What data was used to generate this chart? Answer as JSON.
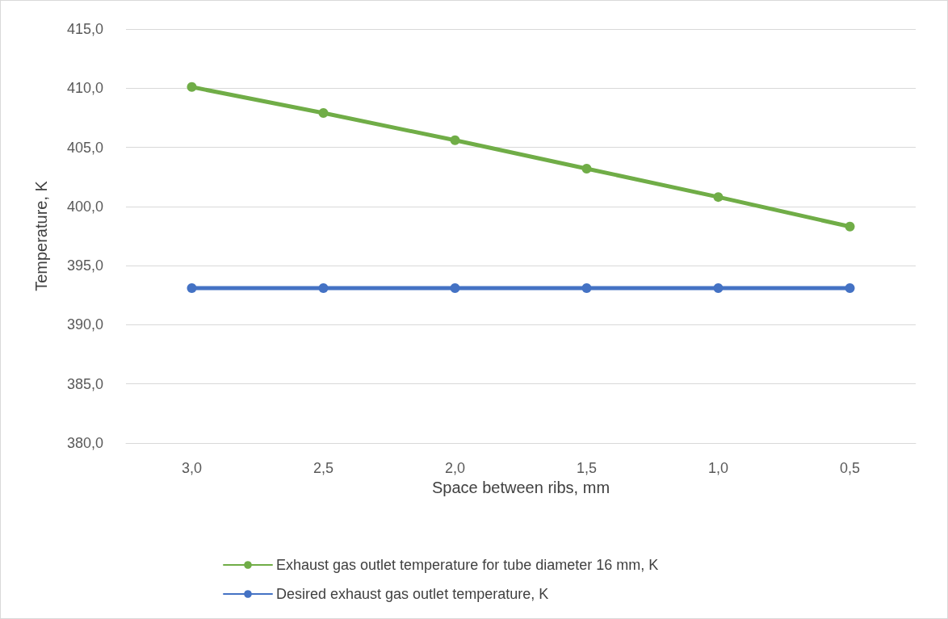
{
  "chart_data": {
    "type": "line",
    "xlabel": "Space between ribs, mm",
    "ylabel": "Temperature, K",
    "categories": [
      "3,0",
      "2,5",
      "2,0",
      "1,5",
      "1,0",
      "0,5"
    ],
    "series": [
      {
        "name": "Exhaust gas outlet temperature for tube diameter 16 mm, K",
        "color": "#70ad47",
        "values": [
          410.1,
          407.9,
          405.6,
          403.2,
          400.8,
          398.3
        ]
      },
      {
        "name": "Desired exhaust gas outlet temperature, K",
        "color": "#4472c4",
        "values": [
          393.1,
          393.1,
          393.1,
          393.1,
          393.1,
          393.1
        ]
      }
    ],
    "ylim": [
      380,
      415
    ],
    "yticks": [
      {
        "value": 380,
        "label": "380,0"
      },
      {
        "value": 385,
        "label": "385,0"
      },
      {
        "value": 390,
        "label": "390,0"
      },
      {
        "value": 395,
        "label": "395,0"
      },
      {
        "value": 400,
        "label": "400,0"
      },
      {
        "value": 405,
        "label": "405,0"
      },
      {
        "value": 410,
        "label": "410,0"
      },
      {
        "value": 415,
        "label": "415,0"
      }
    ],
    "grid": "y",
    "legend": "bottom",
    "marker": "circle",
    "line_style": "solid"
  }
}
